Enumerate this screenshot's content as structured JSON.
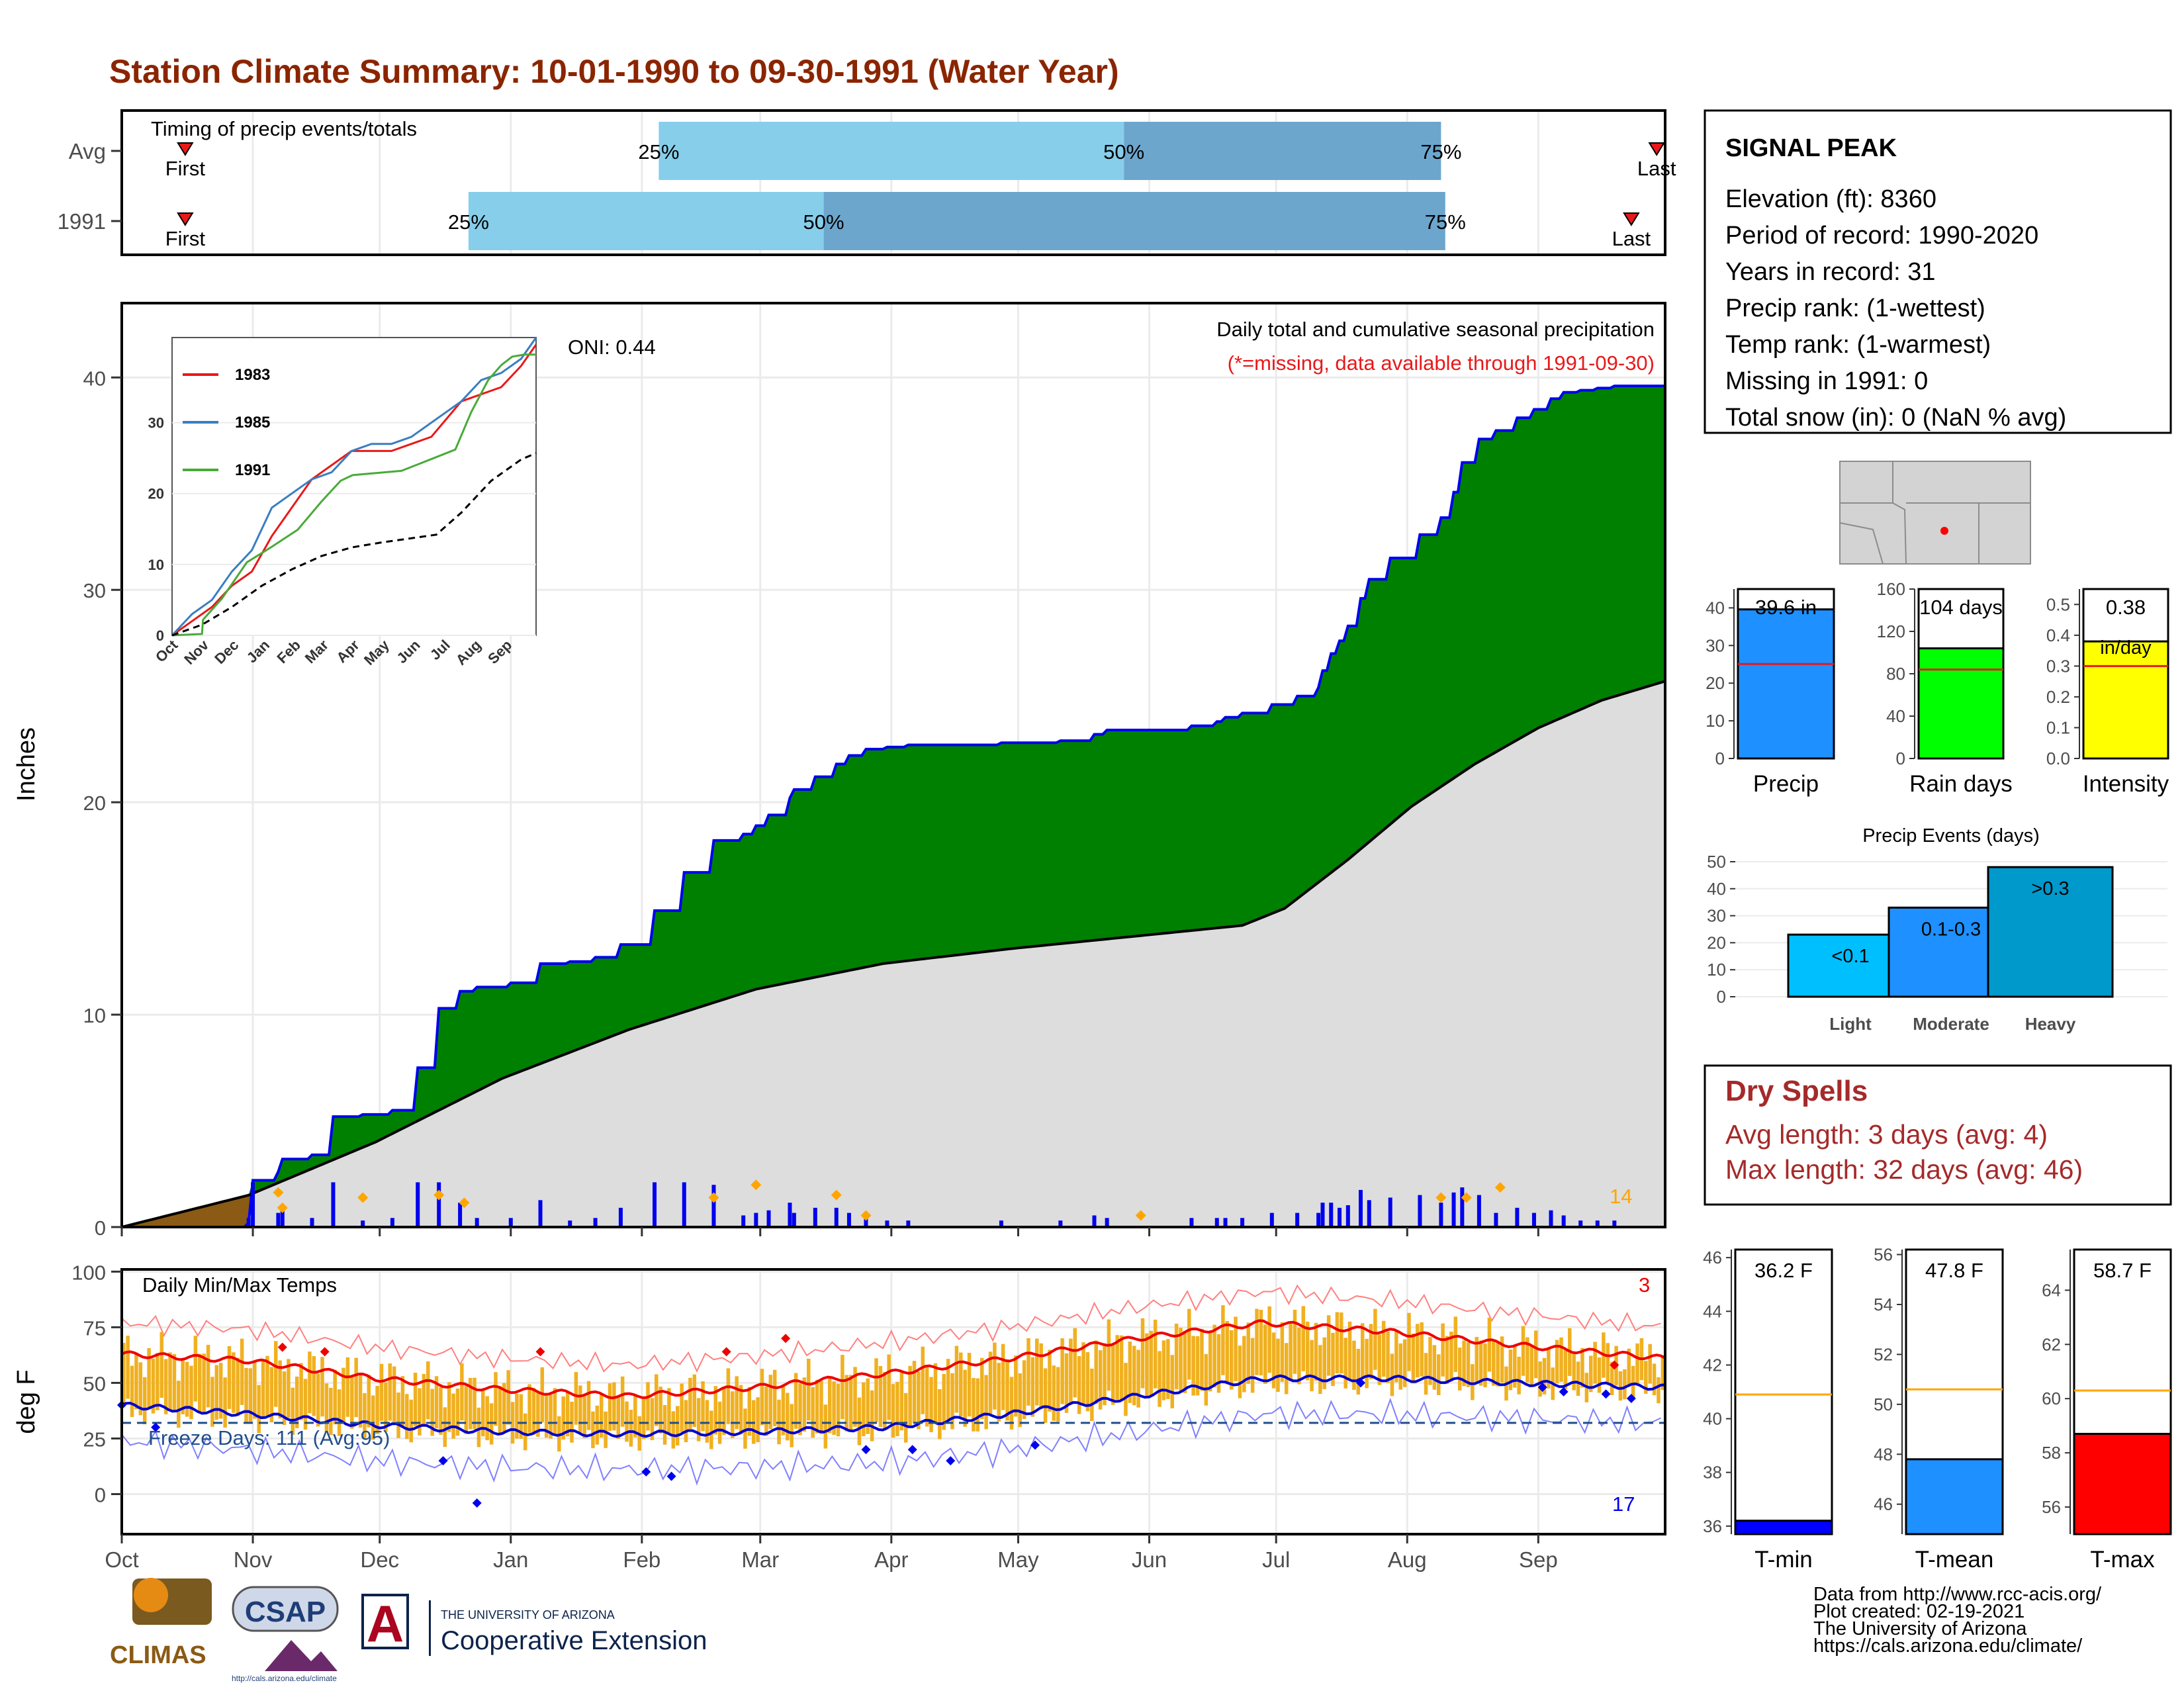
{
  "title": "Station Climate Summary: 10-01-1990 to 09-30-1991 (Water Year)",
  "months": [
    "Oct",
    "Nov",
    "Dec",
    "Jan",
    "Feb",
    "Mar",
    "Apr",
    "May",
    "Jun",
    "Jul",
    "Aug",
    "Sep"
  ],
  "timing": {
    "title": "Timing of precip events/totals",
    "first_label": "First",
    "last_label": "Last",
    "rows": [
      {
        "label": "Avg",
        "first_day": 15,
        "p25_day": 127,
        "p50_day": 237,
        "p75_day": 312,
        "last_day": 363,
        "p25_label": "25%",
        "p50_label": "50%",
        "p75_label": "75%"
      },
      {
        "label": "1991",
        "first_day": 15,
        "p25_day": 82,
        "p50_day": 166,
        "p75_day": 313,
        "last_day": 357,
        "p25_label": "25%",
        "p50_label": "50%",
        "p75_label": "75%"
      }
    ],
    "colors": {
      "early": "#87ceeb",
      "late": "#6ca6cd",
      "marker": "#e8191a"
    }
  },
  "precip": {
    "ylabel": "Inches",
    "heading": "Daily total and cumulative seasonal precipitation",
    "note": "(*=missing, data available through 1991-09-30)",
    "oni": "ONI: 0.44",
    "corner_count": "14",
    "yticks": [
      0,
      10,
      20,
      30,
      40
    ],
    "ymax": 43.5,
    "colors": {
      "above": "#008000",
      "below": "#dddddd",
      "deficit": "#8b5a14",
      "line": "#0000ee",
      "avg": "#000000",
      "daily": "#0000ee",
      "big": "#ffa500",
      "note": "#e8191a",
      "count": "#ffa500"
    }
  },
  "chart_data": [
    {
      "type": "area",
      "title": "Daily total and cumulative seasonal precipitation",
      "ylabel": "Inches",
      "x_unit": "day of water year",
      "ylim": [
        0,
        43.5
      ],
      "series": [
        {
          "name": "1991",
          "x": [
            0,
            30,
            31,
            37,
            38,
            45,
            50,
            57,
            64,
            70,
            75,
            80,
            84,
            92,
            99,
            106,
            112,
            118,
            126,
            133,
            140,
            147,
            150,
            153,
            158,
            159,
            164,
            169,
            172,
            176,
            180,
            181,
            186,
            208,
            222,
            230,
            233,
            253,
            259,
            261,
            265,
            272,
            278,
            283,
            284,
            286,
            288,
            290,
            293,
            295,
            300,
            307,
            312,
            315,
            317,
            321,
            325,
            330,
            334,
            338,
            341,
            345,
            349,
            353,
            357,
            365
          ],
          "values": [
            0,
            0.2,
            2.2,
            2.6,
            3.2,
            3.4,
            5.2,
            5.3,
            5.5,
            7.5,
            10.3,
            11.1,
            11.3,
            11.5,
            12.4,
            12.5,
            12.7,
            13.3,
            14.9,
            16.7,
            18.2,
            18.5,
            18.9,
            19.4,
            20.2,
            20.6,
            21.2,
            21.8,
            22.2,
            22.5,
            22.5,
            22.6,
            22.7,
            22.8,
            22.9,
            23.2,
            23.4,
            23.6,
            23.8,
            24.0,
            24.2,
            24.6,
            25.0,
            25.4,
            26.2,
            27.0,
            27.6,
            28.3,
            29.6,
            30.5,
            31.5,
            32.6,
            33.4,
            34.6,
            36.0,
            37.1,
            37.5,
            38.1,
            38.5,
            39.0,
            39.3,
            39.4,
            39.5,
            39.6,
            39.6,
            39.6
          ]
        },
        {
          "name": "",
          "x": [
            0,
            30,
            60,
            90,
            120,
            150,
            180,
            210,
            240,
            265,
            275,
            290,
            305,
            320,
            335,
            350,
            365
          ],
          "values": [
            0,
            1.5,
            4.0,
            7.0,
            9.3,
            11.2,
            12.4,
            13.1,
            13.7,
            14.2,
            15.0,
            17.3,
            19.8,
            21.8,
            23.5,
            24.8,
            25.7
          ]
        }
      ],
      "daily_markers": [
        {
          "day": 37,
          "amount": 1.2
        },
        {
          "day": 38,
          "amount": 0.6
        },
        {
          "day": 57,
          "amount": 1.0
        },
        {
          "day": 75,
          "amount": 1.1
        },
        {
          "day": 81,
          "amount": 0.8
        },
        {
          "day": 140,
          "amount": 1.0
        },
        {
          "day": 150,
          "amount": 1.5
        },
        {
          "day": 169,
          "amount": 1.1
        },
        {
          "day": 176,
          "amount": 0.3
        },
        {
          "day": 241,
          "amount": 0.3
        },
        {
          "day": 312,
          "amount": 1.0
        },
        {
          "day": 318,
          "amount": 1.0
        },
        {
          "day": 326,
          "amount": 1.4
        }
      ]
    },
    {
      "type": "line",
      "title": "Daily Min/Max Temps",
      "ylabel": "deg F",
      "ylim": [
        -18,
        100
      ],
      "yticks": [
        0,
        25,
        50,
        75,
        100
      ],
      "freeze_line": 32,
      "series": [
        {
          "name": "avg_max",
          "x": [
            0,
            30,
            60,
            90,
            120,
            150,
            180,
            210,
            240,
            270,
            300,
            330,
            365
          ],
          "values": [
            63,
            60,
            52,
            47,
            44,
            48,
            54,
            61,
            70,
            77,
            73,
            67,
            61
          ]
        },
        {
          "name": "avg_min",
          "x": [
            0,
            30,
            60,
            90,
            120,
            150,
            180,
            210,
            240,
            270,
            300,
            330,
            365
          ],
          "values": [
            40,
            36,
            31,
            28,
            27,
            28,
            30,
            36,
            44,
            52,
            52,
            50,
            48
          ]
        }
      ]
    },
    {
      "type": "bar",
      "title": "",
      "categories": [
        "Precip",
        "Rain days",
        "Intensity"
      ],
      "values": [
        39.6,
        104,
        0.38
      ],
      "averages": [
        25.1,
        84,
        0.3
      ],
      "ylims": [
        [
          0,
          45
        ],
        [
          0,
          160
        ],
        [
          0,
          0.55
        ]
      ]
    },
    {
      "type": "bar",
      "title": "Precip Events (days)",
      "categories": [
        "Light",
        "Moderate",
        "Heavy"
      ],
      "values": [
        23,
        33,
        48
      ],
      "ylim": [
        0,
        50
      ]
    },
    {
      "type": "bar",
      "title": "",
      "categories": [
        "T-min",
        "T-mean",
        "T-max"
      ],
      "values": [
        36.2,
        47.8,
        58.7
      ],
      "averages": [
        40.9,
        50.6,
        60.3
      ],
      "ylims": [
        [
          35.7,
          46.3
        ],
        [
          44.8,
          56.2
        ],
        [
          55,
          65.5
        ]
      ]
    }
  ],
  "inset": {
    "yticks": [
      0,
      10,
      20,
      30
    ],
    "months": [
      "Oct",
      "Nov",
      "Dec",
      "Jan",
      "Feb",
      "Mar",
      "Apr",
      "May",
      "Jun",
      "Jul",
      "Aug",
      "Sep"
    ],
    "legend": [
      {
        "label": "1983",
        "color": "#e8191a"
      },
      {
        "label": "1985",
        "color": "#3a7ec1"
      },
      {
        "label": "1991",
        "color": "#4aaa3a"
      }
    ],
    "series": [
      {
        "name": "1983",
        "x": [
          0,
          20,
          40,
          60,
          80,
          100,
          120,
          140,
          160,
          180,
          200,
          220,
          240,
          260,
          290,
          310,
          330,
          350,
          365
        ],
        "values": [
          0,
          2,
          4,
          7,
          9,
          14,
          18,
          22,
          24,
          26,
          26,
          26,
          27,
          28,
          33,
          34,
          35,
          38,
          41
        ]
      },
      {
        "name": "1985",
        "x": [
          0,
          20,
          40,
          60,
          80,
          100,
          120,
          140,
          160,
          180,
          200,
          220,
          240,
          260,
          290,
          310,
          330,
          350,
          365
        ],
        "values": [
          0,
          3,
          5,
          9,
          12,
          18,
          20,
          22,
          23,
          26,
          27,
          27,
          28,
          30,
          33,
          36,
          37,
          39,
          42
        ]
      },
      {
        "name": "1991",
        "x": [
          0,
          30,
          31,
          50,
          75,
          99,
          126,
          150,
          169,
          181,
          230,
          284,
          300,
          317,
          330,
          341,
          353,
          365
        ],
        "values": [
          0,
          0.2,
          2.2,
          5.2,
          10.3,
          12.4,
          14.9,
          18.9,
          21.8,
          22.6,
          23.2,
          26.2,
          31.5,
          36.0,
          38.1,
          39.3,
          39.6,
          39.6
        ]
      },
      {
        "name": "avg",
        "x": [
          0,
          30,
          60,
          90,
          120,
          150,
          180,
          210,
          240,
          265,
          290,
          320,
          350,
          365
        ],
        "values": [
          0,
          1.5,
          4,
          7,
          9.3,
          11.2,
          12.4,
          13.1,
          13.7,
          14.2,
          17.3,
          21.8,
          24.8,
          25.7
        ]
      }
    ]
  },
  "temps": {
    "ylabel": "deg F",
    "heading": "Daily Min/Max Temps",
    "freeze_label": "Freeze Days: 111 (Avg:95)",
    "hot_count": "3",
    "cold_count": "17",
    "colors": {
      "bar": "#f0b020",
      "avg_max": "#ee0000",
      "avg_min": "#0000cc",
      "rec_max": "#ff8080",
      "rec_min": "#8080ff",
      "freeze": "#1f4e8c",
      "hot_marker": "#ee0000",
      "cold_marker": "#0000ee"
    }
  },
  "station": {
    "name": "SIGNAL PEAK",
    "lines": [
      "Elevation (ft): 8360",
      "Period of record: 1990-2020",
      "Years in record: 31",
      "Precip rank:  (1-wettest)",
      "Temp rank:  (1-warmest)",
      "Missing in 1991: 0",
      "Total snow (in): 0 (NaN % avg)"
    ]
  },
  "stats_bars": [
    {
      "label": "Precip",
      "value_label": "39.6 in",
      "color": "#1e90ff",
      "yticks": [
        "0",
        "10",
        "20",
        "30",
        "40"
      ]
    },
    {
      "label": "Rain days",
      "value_label": "104 days",
      "color": "#00ff00",
      "yticks": [
        "0",
        "40",
        "80",
        "120",
        "160"
      ]
    },
    {
      "label": "Intensity",
      "value_label": "0.38",
      "value_sub": "in/day",
      "color": "#ffff00",
      "yticks": [
        "0.0",
        "0.1",
        "0.2",
        "0.3",
        "0.4",
        "0.5"
      ]
    }
  ],
  "events": {
    "title": "Precip Events (days)",
    "yticks": [
      "0",
      "10",
      "20",
      "30",
      "40",
      "50"
    ],
    "bars": [
      {
        "label": "Light",
        "value_label": "<0.1",
        "color": "#00bfff"
      },
      {
        "label": "Moderate",
        "value_label": "0.1-0.3",
        "color": "#1e90ff"
      },
      {
        "label": "Heavy",
        "value_label": ">0.3",
        "color": "#0099cc"
      }
    ]
  },
  "dry": {
    "title": "Dry Spells",
    "line1": "Avg length: 3 days (avg: 4)",
    "line2": "Max length: 32 days (avg: 46)",
    "color": "#a52a2a"
  },
  "temp_bars": [
    {
      "label": "T-min",
      "value_label": "36.2 F",
      "color": "#0000ff",
      "yticks": [
        "36",
        "38",
        "40",
        "42",
        "44",
        "46"
      ]
    },
    {
      "label": "T-mean",
      "value_label": "47.8 F",
      "color": "#1e90ff",
      "yticks": [
        "46",
        "48",
        "50",
        "52",
        "54",
        "56"
      ]
    },
    {
      "label": "T-max",
      "value_label": "58.7 F",
      "color": "#ff0000",
      "yticks": [
        "56",
        "58",
        "60",
        "62",
        "64"
      ]
    }
  ],
  "footer": {
    "lines": [
      "Data from http://www.rcc-acis.org/",
      "Plot created: 02-19-2021",
      "The University of Arizona",
      "https://cals.arizona.edu/climate/"
    ]
  },
  "logos": {
    "climas": "CLIMAS",
    "csap": "CSAP",
    "csap_url": "http://cals.arizona.edu/climate",
    "ua_top": "THE UNIVERSITY OF ARIZONA",
    "ua_main": "Cooperative Extension",
    "ua_letter": "A"
  }
}
